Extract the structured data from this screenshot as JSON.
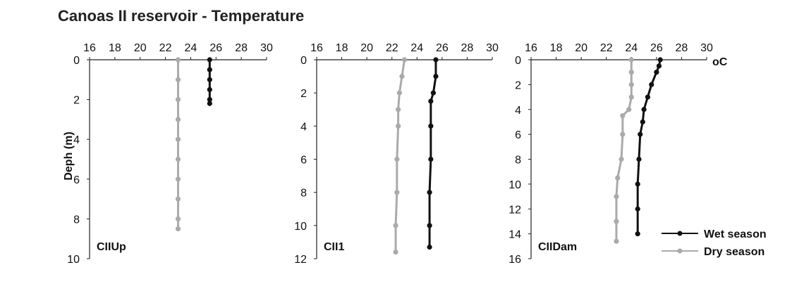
{
  "title": "Canoas II reservoir - Temperature",
  "ylabel": "Deph (m)",
  "unit_label": "oC",
  "legend": [
    {
      "name": "Wet season",
      "color": "#111111"
    },
    {
      "name": "Dry season",
      "color": "#aaaaaa"
    }
  ],
  "chart_data": [
    {
      "type": "line",
      "panel": "CIIUp",
      "x_ticks": [
        16,
        18,
        20,
        22,
        24,
        26,
        28,
        30
      ],
      "y_ticks": [
        0,
        2,
        4,
        6,
        8,
        10
      ],
      "xlim": [
        16,
        30
      ],
      "ylim": [
        0,
        10
      ],
      "series": [
        {
          "name": "Wet season",
          "color": "#111111",
          "points": [
            [
              25.5,
              0
            ],
            [
              25.5,
              0.5
            ],
            [
              25.5,
              1
            ],
            [
              25.5,
              1.5
            ],
            [
              25.5,
              2
            ],
            [
              25.5,
              2.2
            ]
          ]
        },
        {
          "name": "Dry season",
          "color": "#aaaaaa",
          "points": [
            [
              23,
              0
            ],
            [
              23,
              1
            ],
            [
              23,
              2
            ],
            [
              23,
              3
            ],
            [
              23,
              4
            ],
            [
              23,
              5
            ],
            [
              23,
              6
            ],
            [
              23,
              7
            ],
            [
              23,
              8
            ],
            [
              23,
              8.5
            ]
          ]
        }
      ]
    },
    {
      "type": "line",
      "panel": "CII1",
      "x_ticks": [
        16,
        18,
        20,
        22,
        24,
        26,
        28,
        30
      ],
      "y_ticks": [
        0,
        2,
        4,
        6,
        8,
        10,
        12
      ],
      "xlim": [
        16,
        30
      ],
      "ylim": [
        0,
        12
      ],
      "series": [
        {
          "name": "Wet season",
          "color": "#111111",
          "points": [
            [
              25.5,
              0
            ],
            [
              25.5,
              1
            ],
            [
              25.3,
              2
            ],
            [
              25.1,
              2.5
            ],
            [
              25.1,
              4
            ],
            [
              25.1,
              6
            ],
            [
              25,
              8
            ],
            [
              25,
              10
            ],
            [
              25,
              11.3
            ]
          ]
        },
        {
          "name": "Dry season",
          "color": "#aaaaaa",
          "points": [
            [
              23,
              0
            ],
            [
              22.8,
              1
            ],
            [
              22.6,
              2
            ],
            [
              22.5,
              3
            ],
            [
              22.5,
              4
            ],
            [
              22.4,
              6
            ],
            [
              22.4,
              8
            ],
            [
              22.3,
              10
            ],
            [
              22.3,
              11.6
            ]
          ]
        }
      ]
    },
    {
      "type": "line",
      "panel": "CIIDam",
      "x_ticks": [
        16,
        18,
        20,
        22,
        24,
        26,
        28,
        30
      ],
      "y_ticks": [
        0,
        2,
        4,
        6,
        8,
        10,
        12,
        14,
        16
      ],
      "xlim": [
        16,
        30
      ],
      "ylim": [
        0,
        16
      ],
      "series": [
        {
          "name": "Wet season",
          "color": "#111111",
          "points": [
            [
              26.3,
              0
            ],
            [
              26.2,
              0.5
            ],
            [
              26,
              1
            ],
            [
              25.6,
              2
            ],
            [
              25.3,
              3
            ],
            [
              25,
              4
            ],
            [
              24.9,
              5
            ],
            [
              24.7,
              6
            ],
            [
              24.6,
              8
            ],
            [
              24.5,
              10
            ],
            [
              24.5,
              12
            ],
            [
              24.5,
              14
            ]
          ]
        },
        {
          "name": "Dry season",
          "color": "#aaaaaa",
          "points": [
            [
              24,
              0
            ],
            [
              24,
              1
            ],
            [
              24,
              2
            ],
            [
              24,
              3
            ],
            [
              23.8,
              4
            ],
            [
              23.3,
              4.5
            ],
            [
              23.3,
              6
            ],
            [
              23.2,
              8
            ],
            [
              22.9,
              9.5
            ],
            [
              22.8,
              11
            ],
            [
              22.8,
              13
            ],
            [
              22.8,
              14.6
            ]
          ]
        }
      ]
    }
  ]
}
